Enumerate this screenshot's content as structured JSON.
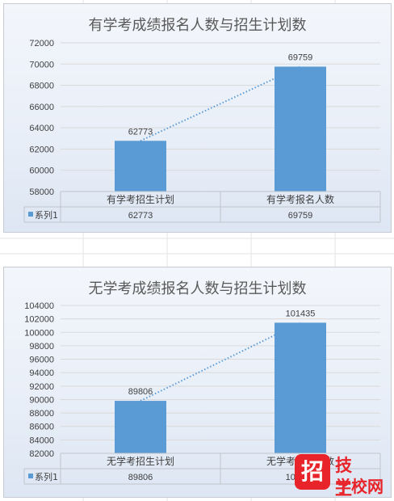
{
  "chart_data": [
    {
      "type": "bar",
      "title": "有学考成绩报名人数与招生计划数",
      "categories": [
        "有学考招生计划",
        "有学考报名人数"
      ],
      "series": [
        {
          "name": "系列1",
          "values": [
            62773,
            69759
          ]
        }
      ],
      "ylim": [
        58000,
        72000
      ],
      "yticks": [
        58000,
        60000,
        62000,
        64000,
        66000,
        68000,
        70000,
        72000
      ],
      "data_labels": [
        "62773",
        "69759"
      ],
      "trendline": "linear, dotted",
      "data_table": true,
      "grid": true,
      "colors": {
        "bar": "#5b9bd5",
        "trendline": "#5b9bd5"
      }
    },
    {
      "type": "bar",
      "title": "无学考成绩报名人数与招生计划数",
      "categories": [
        "无学考招生计划",
        "无学考报名人数"
      ],
      "series": [
        {
          "name": "系列1",
          "values": [
            89806,
            101435
          ]
        }
      ],
      "ylim": [
        82000,
        104000
      ],
      "yticks": [
        82000,
        84000,
        86000,
        88000,
        90000,
        92000,
        94000,
        96000,
        98000,
        100000,
        102000,
        104000
      ],
      "data_labels": [
        "89806",
        "101435"
      ],
      "trendline": "linear, dotted",
      "data_table": true,
      "grid": true,
      "colors": {
        "bar": "#5b9bd5",
        "trendline": "#5b9bd5"
      }
    }
  ],
  "watermark": {
    "badge": "招",
    "top_text": "技工",
    "bottom_text": "学校网",
    "color": "#e8242a"
  }
}
